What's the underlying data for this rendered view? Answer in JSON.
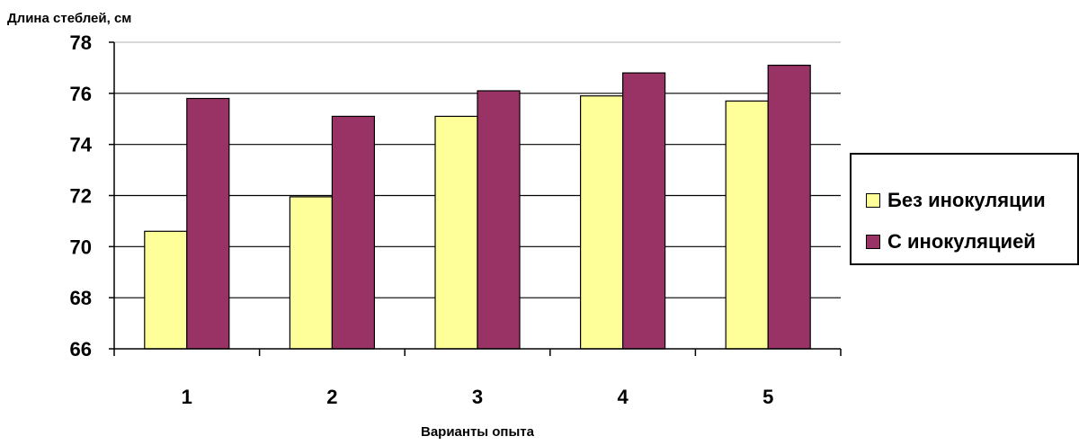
{
  "chart_data": {
    "type": "bar",
    "ylabel": "Длина стеблей, см",
    "xlabel": "Варианты опыта",
    "categories": [
      "1",
      "2",
      "3",
      "4",
      "5"
    ],
    "ylim": [
      66,
      78
    ],
    "yticks": [
      "66",
      "68",
      "70",
      "72",
      "74",
      "76",
      "78"
    ],
    "grid": true,
    "legend_position": "right",
    "series": [
      {
        "name": "Без инокуляции",
        "color": "#ffff99",
        "values": [
          70.6,
          71.95,
          75.1,
          75.9,
          75.7
        ]
      },
      {
        "name": "С инокуляцией",
        "color": "#993366",
        "values": [
          75.8,
          75.1,
          76.1,
          76.8,
          77.1
        ]
      }
    ]
  }
}
